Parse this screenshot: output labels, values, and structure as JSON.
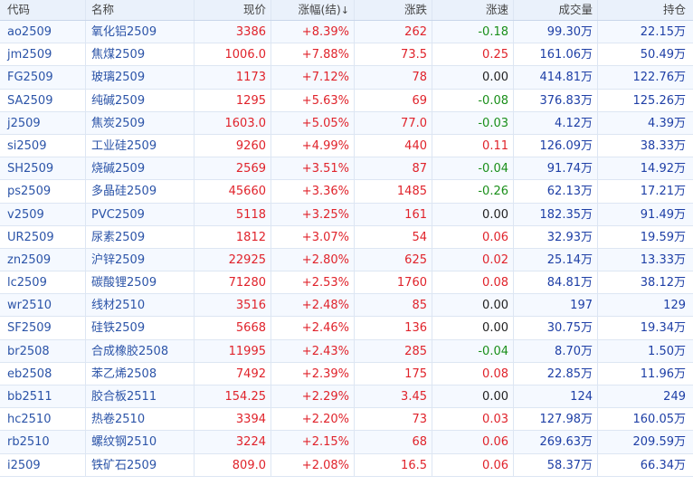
{
  "headers": {
    "code": "代码",
    "name": "名称",
    "price": "现价",
    "pct": "涨幅(结)",
    "sort_arrow": "↓",
    "chg": "涨跌",
    "spd": "涨速",
    "vol": "成交量",
    "oi": "持仓"
  },
  "colors": {
    "up": "#e0232b",
    "down": "#1a8f1a",
    "flat": "#222222",
    "link": "#2c54a8"
  },
  "rows": [
    {
      "code": "ao2509",
      "name": "氧化铝2509",
      "price": "3386",
      "pct": "+8.39%",
      "chg": "262",
      "spd": "-0.18",
      "vol": "99.30万",
      "oi": "22.15万"
    },
    {
      "code": "jm2509",
      "name": "焦煤2509",
      "price": "1006.0",
      "pct": "+7.88%",
      "chg": "73.5",
      "spd": "0.25",
      "vol": "161.06万",
      "oi": "50.49万"
    },
    {
      "code": "FG2509",
      "name": "玻璃2509",
      "price": "1173",
      "pct": "+7.12%",
      "chg": "78",
      "spd": "0.00",
      "vol": "414.81万",
      "oi": "122.76万"
    },
    {
      "code": "SA2509",
      "name": "纯碱2509",
      "price": "1295",
      "pct": "+5.63%",
      "chg": "69",
      "spd": "-0.08",
      "vol": "376.83万",
      "oi": "125.26万"
    },
    {
      "code": "j2509",
      "name": "焦炭2509",
      "price": "1603.0",
      "pct": "+5.05%",
      "chg": "77.0",
      "spd": "-0.03",
      "vol": "4.12万",
      "oi": "4.39万"
    },
    {
      "code": "si2509",
      "name": "工业硅2509",
      "price": "9260",
      "pct": "+4.99%",
      "chg": "440",
      "spd": "0.11",
      "vol": "126.09万",
      "oi": "38.33万"
    },
    {
      "code": "SH2509",
      "name": "烧碱2509",
      "price": "2569",
      "pct": "+3.51%",
      "chg": "87",
      "spd": "-0.04",
      "vol": "91.74万",
      "oi": "14.92万"
    },
    {
      "code": "ps2509",
      "name": "多晶硅2509",
      "price": "45660",
      "pct": "+3.36%",
      "chg": "1485",
      "spd": "-0.26",
      "vol": "62.13万",
      "oi": "17.21万"
    },
    {
      "code": "v2509",
      "name": "PVC2509",
      "price": "5118",
      "pct": "+3.25%",
      "chg": "161",
      "spd": "0.00",
      "vol": "182.35万",
      "oi": "91.49万"
    },
    {
      "code": "UR2509",
      "name": "尿素2509",
      "price": "1812",
      "pct": "+3.07%",
      "chg": "54",
      "spd": "0.06",
      "vol": "32.93万",
      "oi": "19.59万"
    },
    {
      "code": "zn2509",
      "name": "沪锌2509",
      "price": "22925",
      "pct": "+2.80%",
      "chg": "625",
      "spd": "0.02",
      "vol": "25.14万",
      "oi": "13.33万"
    },
    {
      "code": "lc2509",
      "name": "碳酸锂2509",
      "price": "71280",
      "pct": "+2.53%",
      "chg": "1760",
      "spd": "0.08",
      "vol": "84.81万",
      "oi": "38.12万"
    },
    {
      "code": "wr2510",
      "name": "线材2510",
      "price": "3516",
      "pct": "+2.48%",
      "chg": "85",
      "spd": "0.00",
      "vol": "197",
      "oi": "129"
    },
    {
      "code": "SF2509",
      "name": "硅铁2509",
      "price": "5668",
      "pct": "+2.46%",
      "chg": "136",
      "spd": "0.00",
      "vol": "30.75万",
      "oi": "19.34万"
    },
    {
      "code": "br2508",
      "name": "合成橡胶2508",
      "price": "11995",
      "pct": "+2.43%",
      "chg": "285",
      "spd": "-0.04",
      "vol": "8.70万",
      "oi": "1.50万"
    },
    {
      "code": "eb2508",
      "name": "苯乙烯2508",
      "price": "7492",
      "pct": "+2.39%",
      "chg": "175",
      "spd": "0.08",
      "vol": "22.85万",
      "oi": "11.96万"
    },
    {
      "code": "bb2511",
      "name": "胶合板2511",
      "price": "154.25",
      "pct": "+2.29%",
      "chg": "3.45",
      "spd": "0.00",
      "vol": "124",
      "oi": "249"
    },
    {
      "code": "hc2510",
      "name": "热卷2510",
      "price": "3394",
      "pct": "+2.20%",
      "chg": "73",
      "spd": "0.03",
      "vol": "127.98万",
      "oi": "160.05万"
    },
    {
      "code": "rb2510",
      "name": "螺纹钢2510",
      "price": "3224",
      "pct": "+2.15%",
      "chg": "68",
      "spd": "0.06",
      "vol": "269.63万",
      "oi": "209.59万"
    },
    {
      "code": "i2509",
      "name": "铁矿石2509",
      "price": "809.0",
      "pct": "+2.08%",
      "chg": "16.5",
      "spd": "0.06",
      "vol": "58.37万",
      "oi": "66.34万"
    }
  ]
}
